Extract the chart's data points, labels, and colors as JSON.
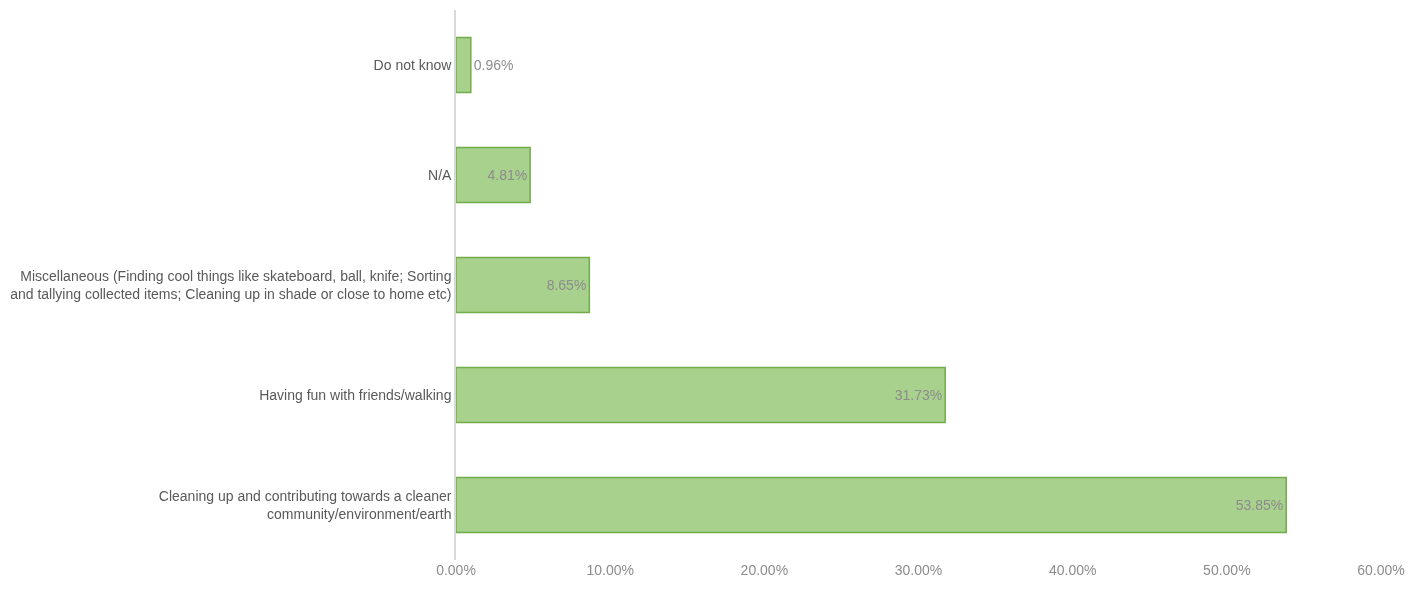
{
  "chart_data": {
    "type": "bar",
    "orientation": "horizontal",
    "categories": [
      "Do not know",
      "N/A",
      "Miscellaneous (Finding cool things like skateboard, ball, knife; Sorting and tallying collected items; Cleaning up in shade or close to home etc)",
      "Having fun with friends/walking",
      "Cleaning up and contributing towards a cleaner community/environment/earth"
    ],
    "values": [
      0.96,
      4.81,
      8.65,
      31.73,
      53.85
    ],
    "value_labels": [
      "0.96%",
      "4.81%",
      "8.65%",
      "31.73%",
      "53.85%"
    ],
    "color": "#a9d18e",
    "xlim": [
      0,
      60
    ],
    "xticks": [
      {
        "value": 0,
        "label": "0.00%"
      },
      {
        "value": 10,
        "label": "10.00%"
      },
      {
        "value": 20,
        "label": "20.00%"
      },
      {
        "value": 30,
        "label": "30.00%"
      },
      {
        "value": 40,
        "label": "40.00%"
      },
      {
        "value": 50,
        "label": "50.00%"
      },
      {
        "value": 60,
        "label": "60.00%"
      }
    ],
    "legend": false
  }
}
